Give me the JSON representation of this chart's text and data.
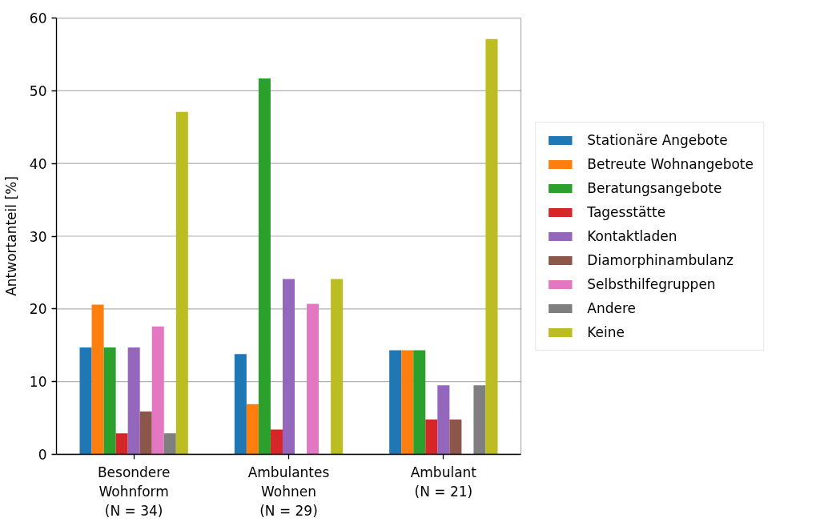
{
  "chart_data": {
    "type": "bar",
    "categories": [
      "Besondere\nWohnform\n(N = 34)",
      "Ambulantes\nWohnen\n(N = 29)",
      "Ambulant\n(N = 21)"
    ],
    "ylabel": "Antwortanteil [%]",
    "ylim": [
      0,
      60
    ],
    "yticks": [
      0,
      10,
      20,
      30,
      40,
      50,
      60
    ],
    "grid": "y",
    "legend": "right",
    "series": [
      {
        "name": "Stationäre Angebote",
        "color": "#1f77b4",
        "values": [
          14.7,
          13.8,
          14.3
        ]
      },
      {
        "name": "Betreute Wohnangebote",
        "color": "#ff7f0e",
        "values": [
          20.6,
          6.9,
          14.3
        ]
      },
      {
        "name": "Beratungsangebote",
        "color": "#2ca02c",
        "values": [
          14.7,
          51.7,
          14.3
        ]
      },
      {
        "name": "Tagesstätte",
        "color": "#d62728",
        "values": [
          2.9,
          3.4,
          4.8
        ]
      },
      {
        "name": "Kontaktladen",
        "color": "#9467bd",
        "values": [
          14.7,
          24.1,
          9.5
        ]
      },
      {
        "name": "Diamorphinambulanz",
        "color": "#8c564b",
        "values": [
          5.9,
          0,
          4.8
        ]
      },
      {
        "name": "Selbsthilfegruppen",
        "color": "#e377c2",
        "values": [
          17.6,
          20.7,
          0
        ]
      },
      {
        "name": "Andere",
        "color": "#7f7f7f",
        "values": [
          2.9,
          0,
          9.5
        ]
      },
      {
        "name": "Keine",
        "color": "#bcbd22",
        "values": [
          47.1,
          24.1,
          57.1
        ]
      }
    ]
  }
}
